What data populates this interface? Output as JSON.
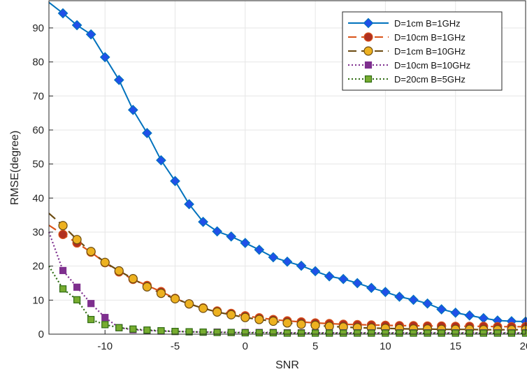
{
  "chart_data": {
    "type": "line",
    "xlabel": "SNR",
    "ylabel": "RMSE(degree)",
    "xlim": [
      -14,
      20
    ],
    "ylim": [
      0,
      98
    ],
    "xticks": [
      -10,
      -5,
      0,
      5,
      10,
      15,
      20
    ],
    "xtick_labels": [
      "-10",
      "-5",
      "0",
      "5",
      "10",
      "15",
      "20"
    ],
    "yticks": [
      0,
      10,
      20,
      30,
      40,
      50,
      60,
      70,
      80,
      90
    ],
    "ytick_labels": [
      "0",
      "10",
      "20",
      "30",
      "40",
      "50",
      "60",
      "70",
      "80",
      "90"
    ],
    "grid": true,
    "legend_position": "top-right",
    "x": [
      -13,
      -12,
      -11,
      -10,
      -9,
      -8,
      -7,
      -6,
      -5,
      -4,
      -3,
      -2,
      -1,
      0,
      1,
      2,
      3,
      4,
      5,
      6,
      7,
      8,
      9,
      10,
      11,
      12,
      13,
      14,
      15,
      16,
      17,
      18,
      19,
      20
    ],
    "series": [
      {
        "name": "D=1cm B=1GHz",
        "color": "#0072BD",
        "marker_fill": "#2050e8",
        "marker": "diamond",
        "line": "solid",
        "x_start": -14,
        "y_start": 97.5,
        "values": [
          94.3,
          90.8,
          88.1,
          81.4,
          74.7,
          65.9,
          59.1,
          51.1,
          45.0,
          38.2,
          33.0,
          30.2,
          28.7,
          26.8,
          24.8,
          22.6,
          21.3,
          20.1,
          18.5,
          17.0,
          16.2,
          15.0,
          13.6,
          12.4,
          11.0,
          10.1,
          9.0,
          7.3,
          6.3,
          5.5,
          4.7,
          4.0,
          3.8,
          3.7
        ]
      },
      {
        "name": "D=10cm B=1GHz",
        "color": "#D95319",
        "marker_fill": "#b03020",
        "marker": "circle",
        "line": "dashed",
        "x_start": -14,
        "y_start": 32,
        "values": [
          29.3,
          26.8,
          24.1,
          21.0,
          18.3,
          16.1,
          14.3,
          12.5,
          10.5,
          8.9,
          7.7,
          6.8,
          6.1,
          5.4,
          4.8,
          4.3,
          3.9,
          3.6,
          3.3,
          3.1,
          2.9,
          2.8,
          2.7,
          2.6,
          2.5,
          2.5,
          2.4,
          2.4,
          2.3,
          2.3,
          2.3,
          2.2,
          2.2,
          2.2
        ]
      },
      {
        "name": "D=1cm B=10GHz",
        "color": "#6b4a10",
        "marker_fill": "#EDB120",
        "marker": "circle",
        "line": "dashed",
        "x_start": -14,
        "y_start": 35.5,
        "values": [
          31.9,
          27.8,
          24.3,
          21.1,
          18.6,
          16.3,
          13.9,
          12.0,
          10.4,
          8.9,
          7.6,
          6.5,
          5.7,
          4.9,
          4.3,
          3.8,
          3.3,
          2.9,
          2.6,
          2.3,
          2.1,
          1.9,
          1.8,
          1.7,
          1.6,
          1.5,
          1.5,
          1.4,
          1.4,
          1.4,
          1.3,
          1.3,
          1.3,
          1.3
        ]
      },
      {
        "name": "D=10cm B=10GHz",
        "color": "#7E2F8E",
        "marker_fill": "#7E2F8E",
        "marker": "square",
        "line": "dotted",
        "x_start": -14,
        "y_start": 30,
        "values": [
          18.7,
          13.8,
          9.0,
          4.9,
          1.9,
          1.3,
          1.1,
          0.9,
          0.8,
          0.7,
          0.6,
          0.6,
          0.5,
          0.5,
          0.5,
          0.5,
          0.4,
          0.4,
          0.4,
          0.4,
          0.4,
          0.4,
          0.4,
          0.4,
          0.4,
          0.4,
          0.4,
          0.4,
          0.4,
          0.4,
          0.4,
          0.4,
          0.4,
          0.4
        ]
      },
      {
        "name": "D=20cm B=5GHz",
        "color": "#2e6b12",
        "marker_fill": "#77AC30",
        "marker": "square",
        "line": "dotted",
        "x_start": -14,
        "y_start": 20,
        "values": [
          13.3,
          10.1,
          4.3,
          2.8,
          1.9,
          1.5,
          1.2,
          1.0,
          0.8,
          0.7,
          0.6,
          0.5,
          0.5,
          0.4,
          0.4,
          0.4,
          0.3,
          0.3,
          0.3,
          0.3,
          0.3,
          0.3,
          0.3,
          0.3,
          0.3,
          0.3,
          0.3,
          0.3,
          0.3,
          0.3,
          0.3,
          0.3,
          0.3,
          0.3
        ]
      }
    ]
  }
}
